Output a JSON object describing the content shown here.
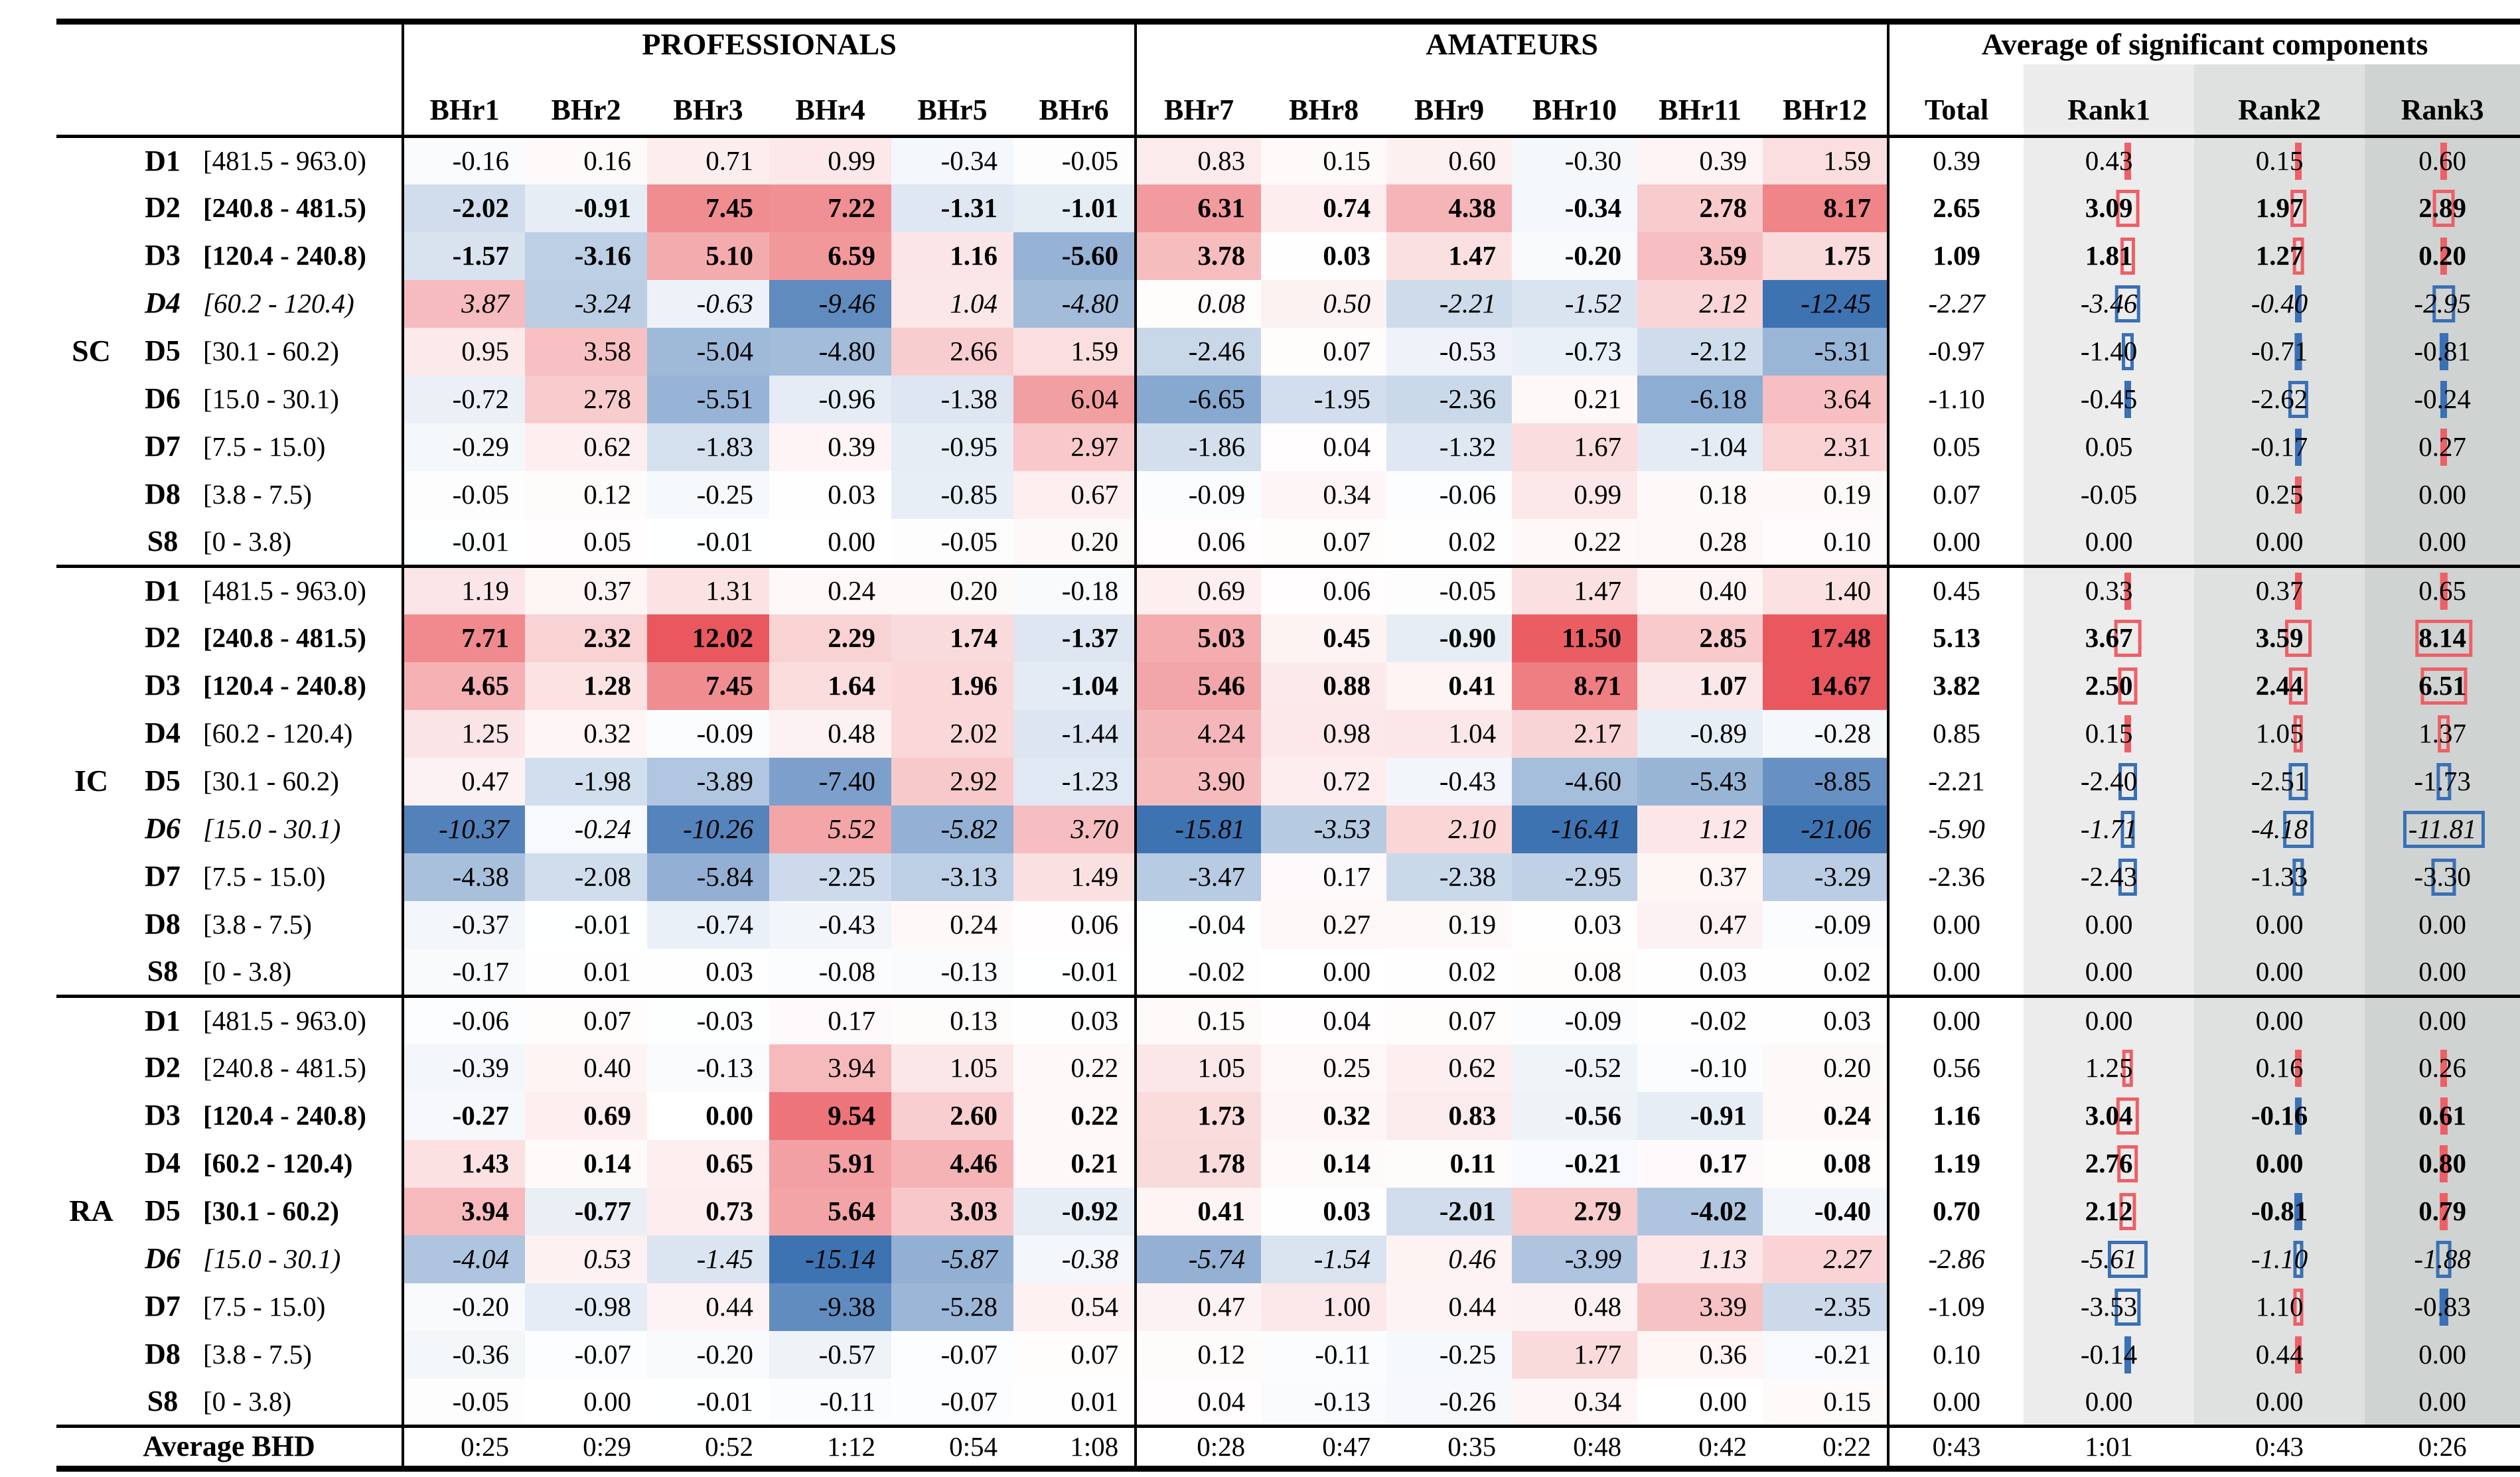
{
  "chart_data": {
    "type": "heatmap",
    "title": "Average of significant components by BHr",
    "column_groups": [
      "PROFESSIONALS",
      "AMATEURS",
      "Average of significant components"
    ],
    "columns": [
      "BHr1",
      "BHr2",
      "BHr3",
      "BHr4",
      "BHr5",
      "BHr6",
      "BHr7",
      "BHr8",
      "BHr9",
      "BHr10",
      "BHr11",
      "BHr12"
    ],
    "summary_columns": [
      "Total",
      "Rank1",
      "Rank2",
      "Rank3"
    ],
    "colors": {
      "heat_positive": "#e9585e",
      "heat_negative": "#3e73b2",
      "mark_positive": "#ee5f66",
      "mark_negative": "#3a70b5",
      "rank_backgrounds": [
        "#ececec",
        "#dee1e0",
        "#cfd3d2"
      ],
      "border": "#000000"
    },
    "row_sections": [
      {
        "name": "SC",
        "rows": [
          {
            "label": "D1",
            "range": "[481.5 - 963.0)",
            "style": "normal",
            "values": [
              -0.16,
              0.16,
              0.71,
              0.99,
              -0.34,
              -0.05,
              0.83,
              0.15,
              0.6,
              -0.3,
              0.39,
              1.59
            ],
            "total": 0.39,
            "ranks": [
              0.43,
              0.15,
              0.6
            ]
          },
          {
            "label": "D2",
            "range": "[240.8 - 481.5)",
            "style": "bold",
            "values": [
              -2.02,
              -0.91,
              7.45,
              7.22,
              -1.31,
              -1.01,
              6.31,
              0.74,
              4.38,
              -0.34,
              2.78,
              8.17
            ],
            "total": 2.65,
            "ranks": [
              3.09,
              1.97,
              2.89
            ]
          },
          {
            "label": "D3",
            "range": "[120.4 - 240.8)",
            "style": "bold",
            "values": [
              -1.57,
              -3.16,
              5.1,
              6.59,
              1.16,
              -5.6,
              3.78,
              0.03,
              1.47,
              -0.2,
              3.59,
              1.75
            ],
            "total": 1.09,
            "ranks": [
              1.81,
              1.27,
              0.2
            ]
          },
          {
            "label": "D4",
            "range": "[60.2 - 120.4)",
            "style": "italic",
            "values": [
              3.87,
              -3.24,
              -0.63,
              -9.46,
              1.04,
              -4.8,
              0.08,
              0.5,
              -2.21,
              -1.52,
              2.12,
              -12.45
            ],
            "total": -2.27,
            "ranks": [
              -3.46,
              -0.4,
              -2.95
            ]
          },
          {
            "label": "D5",
            "range": "[30.1 - 60.2)",
            "style": "normal",
            "values": [
              0.95,
              3.58,
              -5.04,
              -4.8,
              2.66,
              1.59,
              -2.46,
              0.07,
              -0.53,
              -0.73,
              -2.12,
              -5.31
            ],
            "total": -0.97,
            "ranks": [
              -1.4,
              -0.71,
              -0.81
            ]
          },
          {
            "label": "D6",
            "range": "[15.0 - 30.1)",
            "style": "normal",
            "values": [
              -0.72,
              2.78,
              -5.51,
              -0.96,
              -1.38,
              6.04,
              -6.65,
              -1.95,
              -2.36,
              0.21,
              -6.18,
              3.64
            ],
            "total": -1.1,
            "ranks": [
              -0.45,
              -2.62,
              -0.24
            ]
          },
          {
            "label": "D7",
            "range": "[7.5 - 15.0)",
            "style": "normal",
            "values": [
              -0.29,
              0.62,
              -1.83,
              0.39,
              -0.95,
              2.97,
              -1.86,
              0.04,
              -1.32,
              1.67,
              -1.04,
              2.31
            ],
            "total": 0.05,
            "ranks": [
              0.05,
              -0.17,
              0.27
            ]
          },
          {
            "label": "D8",
            "range": "[3.8 - 7.5)",
            "style": "normal",
            "values": [
              -0.05,
              0.12,
              -0.25,
              0.03,
              -0.85,
              0.67,
              -0.09,
              0.34,
              -0.06,
              0.99,
              0.18,
              0.19
            ],
            "total": 0.07,
            "ranks": [
              -0.05,
              0.25,
              0.0
            ]
          },
          {
            "label": "S8",
            "range": "[0 - 3.8)",
            "style": "normal",
            "values": [
              -0.01,
              0.05,
              -0.01,
              0.0,
              -0.05,
              0.2,
              0.06,
              0.07,
              0.02,
              0.22,
              0.28,
              0.1
            ],
            "total": 0.0,
            "ranks": [
              0.0,
              0.0,
              0.0
            ]
          }
        ]
      },
      {
        "name": "IC",
        "rows": [
          {
            "label": "D1",
            "range": "[481.5 - 963.0)",
            "style": "normal",
            "values": [
              1.19,
              0.37,
              1.31,
              0.24,
              0.2,
              -0.18,
              0.69,
              0.06,
              -0.05,
              1.47,
              0.4,
              1.4
            ],
            "total": 0.45,
            "ranks": [
              0.33,
              0.37,
              0.65
            ]
          },
          {
            "label": "D2",
            "range": "[240.8 - 481.5)",
            "style": "bold",
            "values": [
              7.71,
              2.32,
              12.02,
              2.29,
              1.74,
              -1.37,
              5.03,
              0.45,
              -0.9,
              11.5,
              2.85,
              17.48
            ],
            "total": 5.13,
            "ranks": [
              3.67,
              3.59,
              8.14
            ]
          },
          {
            "label": "D3",
            "range": "[120.4 - 240.8)",
            "style": "bold",
            "values": [
              4.65,
              1.28,
              7.45,
              1.64,
              1.96,
              -1.04,
              5.46,
              0.88,
              0.41,
              8.71,
              1.07,
              14.67
            ],
            "total": 3.82,
            "ranks": [
              2.5,
              2.44,
              6.51
            ]
          },
          {
            "label": "D4",
            "range": "[60.2 - 120.4)",
            "style": "normal",
            "values": [
              1.25,
              0.32,
              -0.09,
              0.48,
              2.02,
              -1.44,
              4.24,
              0.98,
              1.04,
              2.17,
              -0.89,
              -0.28
            ],
            "total": 0.85,
            "ranks": [
              0.15,
              1.05,
              1.37
            ]
          },
          {
            "label": "D5",
            "range": "[30.1 - 60.2)",
            "style": "normal",
            "values": [
              0.47,
              -1.98,
              -3.89,
              -7.4,
              2.92,
              -1.23,
              3.9,
              0.72,
              -0.43,
              -4.6,
              -5.43,
              -8.85
            ],
            "total": -2.21,
            "ranks": [
              -2.4,
              -2.51,
              -1.73
            ]
          },
          {
            "label": "D6",
            "range": "[15.0 - 30.1)",
            "style": "italic",
            "values": [
              -10.37,
              -0.24,
              -10.26,
              5.52,
              -5.82,
              3.7,
              -15.81,
              -3.53,
              2.1,
              -16.41,
              1.12,
              -21.06
            ],
            "total": -5.9,
            "ranks": [
              -1.71,
              -4.18,
              -11.81
            ]
          },
          {
            "label": "D7",
            "range": "[7.5 - 15.0)",
            "style": "normal",
            "values": [
              -4.38,
              -2.08,
              -5.84,
              -2.25,
              -3.13,
              1.49,
              -3.47,
              0.17,
              -2.38,
              -2.95,
              0.37,
              -3.29
            ],
            "total": -2.36,
            "ranks": [
              -2.43,
              -1.33,
              -3.3
            ]
          },
          {
            "label": "D8",
            "range": "[3.8 - 7.5)",
            "style": "normal",
            "values": [
              -0.37,
              -0.01,
              -0.74,
              -0.43,
              0.24,
              0.06,
              -0.04,
              0.27,
              0.19,
              0.03,
              0.47,
              -0.09
            ],
            "total": 0.0,
            "ranks": [
              0.0,
              0.0,
              0.0
            ]
          },
          {
            "label": "S8",
            "range": "[0 - 3.8)",
            "style": "normal",
            "values": [
              -0.17,
              0.01,
              0.03,
              -0.08,
              -0.13,
              -0.01,
              -0.02,
              0.0,
              0.02,
              0.08,
              0.03,
              0.02
            ],
            "total": 0.0,
            "ranks": [
              0.0,
              0.0,
              0.0
            ]
          }
        ]
      },
      {
        "name": "RA",
        "rows": [
          {
            "label": "D1",
            "range": "[481.5 - 963.0)",
            "style": "normal",
            "values": [
              -0.06,
              0.07,
              -0.03,
              0.17,
              0.13,
              0.03,
              0.15,
              0.04,
              0.07,
              -0.09,
              -0.02,
              0.03
            ],
            "total": 0.0,
            "ranks": [
              0.0,
              0.0,
              0.0
            ]
          },
          {
            "label": "D2",
            "range": "[240.8 - 481.5)",
            "style": "normal",
            "values": [
              -0.39,
              0.4,
              -0.13,
              3.94,
              1.05,
              0.22,
              1.05,
              0.25,
              0.62,
              -0.52,
              -0.1,
              0.2
            ],
            "total": 0.56,
            "ranks": [
              1.25,
              0.16,
              0.26
            ]
          },
          {
            "label": "D3",
            "range": "[120.4 - 240.8)",
            "style": "bold",
            "values": [
              -0.27,
              0.69,
              0.0,
              9.54,
              2.6,
              0.22,
              1.73,
              0.32,
              0.83,
              -0.56,
              -0.91,
              0.24
            ],
            "total": 1.16,
            "ranks": [
              3.04,
              -0.16,
              0.61
            ]
          },
          {
            "label": "D4",
            "range": "[60.2 - 120.4)",
            "style": "bold",
            "values": [
              1.43,
              0.14,
              0.65,
              5.91,
              4.46,
              0.21,
              1.78,
              0.14,
              0.11,
              -0.21,
              0.17,
              0.08
            ],
            "total": 1.19,
            "ranks": [
              2.76,
              0.0,
              0.8
            ]
          },
          {
            "label": "D5",
            "range": "[30.1 - 60.2)",
            "style": "bold",
            "values": [
              3.94,
              -0.77,
              0.73,
              5.64,
              3.03,
              -0.92,
              0.41,
              0.03,
              -2.01,
              2.79,
              -4.02,
              -0.4
            ],
            "total": 0.7,
            "ranks": [
              2.12,
              -0.81,
              0.79
            ]
          },
          {
            "label": "D6",
            "range": "[15.0 - 30.1)",
            "style": "italic",
            "values": [
              -4.04,
              0.53,
              -1.45,
              -15.14,
              -5.87,
              -0.38,
              -5.74,
              -1.54,
              0.46,
              -3.99,
              1.13,
              2.27
            ],
            "total": -2.86,
            "ranks": [
              -5.61,
              -1.1,
              -1.88
            ]
          },
          {
            "label": "D7",
            "range": "[7.5 - 15.0)",
            "style": "normal",
            "values": [
              -0.2,
              -0.98,
              0.44,
              -9.38,
              -5.28,
              0.54,
              0.47,
              1.0,
              0.44,
              0.48,
              3.39,
              -2.35
            ],
            "total": -1.09,
            "ranks": [
              -3.53,
              1.1,
              -0.83
            ]
          },
          {
            "label": "D8",
            "range": "[3.8 - 7.5)",
            "style": "normal",
            "values": [
              -0.36,
              -0.07,
              -0.2,
              -0.57,
              -0.07,
              0.07,
              0.12,
              -0.11,
              -0.25,
              1.77,
              0.36,
              -0.21
            ],
            "total": 0.1,
            "ranks": [
              -0.14,
              0.44,
              0.0
            ]
          },
          {
            "label": "S8",
            "range": "[0 - 3.8)",
            "style": "normal",
            "values": [
              -0.05,
              0.0,
              -0.01,
              -0.11,
              -0.07,
              0.01,
              0.04,
              -0.13,
              -0.26,
              0.34,
              0.0,
              0.15
            ],
            "total": 0.0,
            "ranks": [
              0.0,
              0.0,
              0.0
            ]
          }
        ]
      }
    ],
    "footer": {
      "label": "Average BHD",
      "values": [
        "0:25",
        "0:29",
        "0:52",
        "1:12",
        "0:54",
        "1:08",
        "0:28",
        "0:47",
        "0:35",
        "0:48",
        "0:42",
        "0:22"
      ],
      "summary": [
        "0:43",
        "1:01",
        "0:43",
        "0:26"
      ]
    }
  }
}
